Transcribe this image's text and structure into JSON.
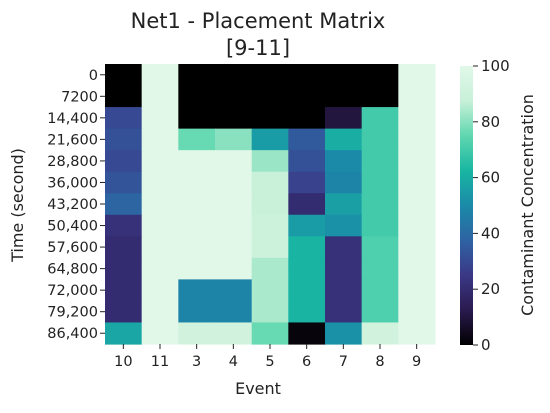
{
  "chart_data": {
    "type": "heatmap",
    "title": "Net1 - Placement Matrix",
    "subtitle": "[9-11]",
    "xlabel": "Event",
    "ylabel": "Time (second)",
    "x_categories": [
      "10",
      "11",
      "3",
      "4",
      "5",
      "6",
      "7",
      "8",
      "9"
    ],
    "y_categories": [
      "0",
      "7200",
      "14,400",
      "21,600",
      "28,800",
      "36,000",
      "43,200",
      "50,400",
      "57,600",
      "64,800",
      "72,000",
      "79,200",
      "86,400"
    ],
    "colorbar": {
      "label": "Contaminant Concentration",
      "min": 0,
      "max": 100,
      "ticks": [
        "0",
        "20",
        "40",
        "60",
        "80",
        "100"
      ]
    },
    "colormap_stops": [
      "#000000",
      "#2a1a4e",
      "#3b3886",
      "#2e63a3",
      "#1a8aa8",
      "#19b6a2",
      "#5fd7b0",
      "#c8f0d8",
      "#e1f8e9"
    ],
    "values": [
      [
        0,
        100,
        0,
        0,
        0,
        0,
        0,
        0,
        100
      ],
      [
        0,
        100,
        0,
        0,
        0,
        0,
        0,
        0,
        100
      ],
      [
        30,
        100,
        0,
        0,
        0,
        0,
        10,
        70,
        100
      ],
      [
        32,
        100,
        76,
        80,
        55,
        35,
        60,
        70,
        100
      ],
      [
        30,
        100,
        100,
        100,
        82,
        32,
        50,
        70,
        100
      ],
      [
        33,
        100,
        100,
        100,
        88,
        28,
        48,
        70,
        100
      ],
      [
        38,
        100,
        100,
        100,
        88,
        20,
        56,
        70,
        100
      ],
      [
        22,
        100,
        100,
        100,
        90,
        55,
        52,
        70,
        100
      ],
      [
        20,
        100,
        100,
        100,
        90,
        62,
        22,
        72,
        100
      ],
      [
        20,
        100,
        100,
        100,
        84,
        62,
        22,
        72,
        100
      ],
      [
        20,
        100,
        48,
        48,
        84,
        62,
        22,
        72,
        100
      ],
      [
        20,
        100,
        48,
        48,
        84,
        62,
        22,
        72,
        100
      ],
      [
        58,
        100,
        92,
        92,
        76,
        2,
        52,
        92,
        100
      ]
    ]
  }
}
